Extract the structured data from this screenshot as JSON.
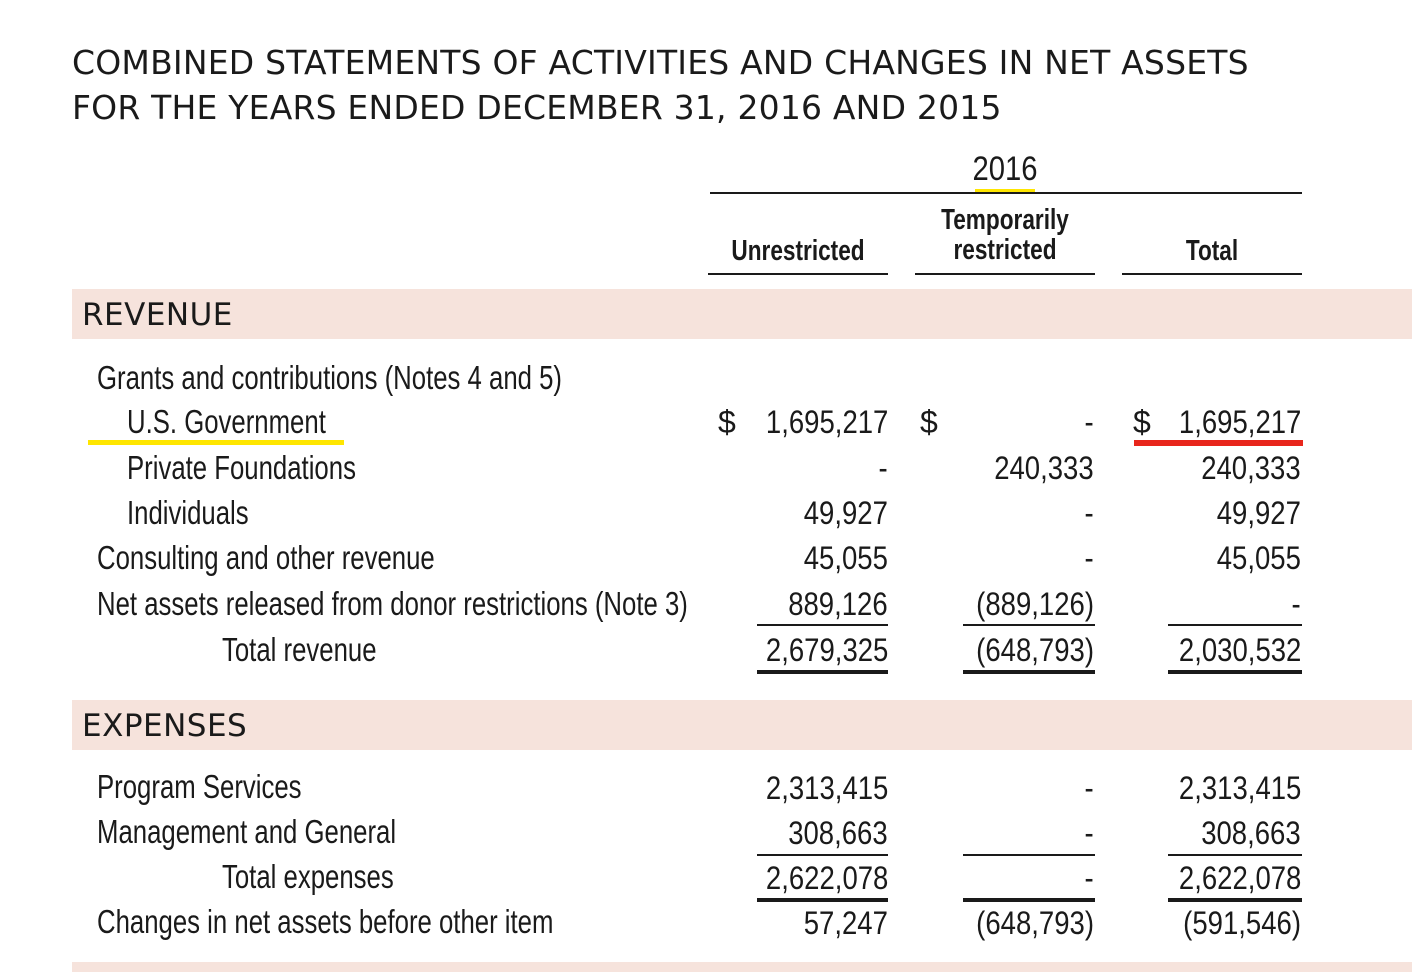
{
  "title": {
    "line1": "COMBINED STATEMENTS OF ACTIVITIES AND CHANGES IN NET ASSETS",
    "line2": "FOR THE YEARS ENDED DECEMBER 31, 2016 AND 2015"
  },
  "year": "2016",
  "columns": {
    "unrestricted": "Unrestricted",
    "temp_line1": "Temporarily",
    "temp_line2": "restricted",
    "total": "Total"
  },
  "revenue": {
    "heading": "REVENUE",
    "grants_label": "Grants and contributions (Notes 4 and 5)",
    "rows": [
      {
        "label": "U.S. Government",
        "unrestricted": "1,695,217",
        "temp": "-",
        "total": "1,695,217"
      },
      {
        "label": "Private Foundations",
        "unrestricted": "-",
        "temp": "240,333",
        "total": "240,333"
      },
      {
        "label": "Individuals",
        "unrestricted": "49,927",
        "temp": "-",
        "total": "49,927"
      },
      {
        "label": "Consulting and other revenue",
        "unrestricted": "45,055",
        "temp": "-",
        "total": "45,055"
      },
      {
        "label": "Net assets released from donor restrictions (Note 3)",
        "unrestricted": "889,126",
        "temp": "(889,126)",
        "total": "-"
      },
      {
        "label": "Total revenue",
        "unrestricted": "2,679,325",
        "temp": "(648,793)",
        "total": "2,030,532"
      }
    ],
    "currency_symbol": "$"
  },
  "expenses": {
    "heading": "EXPENSES",
    "rows": [
      {
        "label": "Program Services",
        "unrestricted": "2,313,415",
        "temp": "-",
        "total": "2,313,415"
      },
      {
        "label": "Management and General",
        "unrestricted": "308,663",
        "temp": "-",
        "total": "308,663"
      },
      {
        "label": "Total expenses",
        "unrestricted": "2,622,078",
        "temp": "-",
        "total": "2,622,078"
      },
      {
        "label": "Changes in net assets before other item",
        "unrestricted": "57,247",
        "temp": "(648,793)",
        "total": "(591,546)"
      }
    ]
  },
  "colors": {
    "band": "#f6e3dc",
    "highlight_yellow": "#ffe600",
    "highlight_red": "#e8261c"
  }
}
